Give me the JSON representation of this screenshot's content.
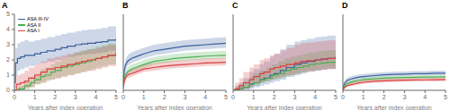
{
  "chart_data": [
    {
      "type": "step",
      "title": "A",
      "xlabel": "Years after index operation",
      "xlim": [
        0,
        5
      ],
      "ylim": [
        0,
        5
      ],
      "xticks": [
        0,
        1,
        2,
        3,
        4,
        5
      ],
      "yticks": [
        0,
        1,
        2,
        3,
        4,
        5
      ],
      "grid": false,
      "legend": "upper left",
      "series": [
        {
          "name": "ASA III-IV",
          "color": "#3a5fa0",
          "x": [
            0,
            0.05,
            0.15,
            0.3,
            0.5,
            0.7,
            1.0,
            1.3,
            1.6,
            2.0,
            2.3,
            2.6,
            3.0,
            3.3,
            3.6,
            4.0,
            4.3,
            4.6,
            5.0
          ],
          "values": [
            0.5,
            1.8,
            2.1,
            2.2,
            2.3,
            2.3,
            2.4,
            2.5,
            2.6,
            2.7,
            2.8,
            2.9,
            3.0,
            3.05,
            3.1,
            3.15,
            3.2,
            3.3,
            3.4
          ],
          "lo": [
            0.1,
            1.0,
            1.3,
            1.4,
            1.5,
            1.6,
            1.7,
            1.8,
            1.9,
            2.0,
            2.1,
            2.2,
            2.3,
            2.35,
            2.4,
            2.45,
            2.5,
            2.6,
            2.7
          ],
          "hi": [
            1.2,
            2.8,
            3.1,
            3.2,
            3.3,
            3.2,
            3.3,
            3.4,
            3.5,
            3.6,
            3.7,
            3.8,
            3.9,
            3.95,
            4.0,
            4.05,
            4.1,
            4.2,
            4.3
          ]
        },
        {
          "name": "ASA II",
          "color": "#4caf50",
          "x": [
            0,
            0.2,
            0.5,
            0.8,
            1.0,
            1.3,
            1.5,
            1.8,
            2.0,
            2.3,
            2.6,
            2.9,
            3.2,
            3.5,
            3.8,
            4.0,
            4.3,
            4.6,
            5.0
          ],
          "values": [
            0,
            0.1,
            0.3,
            0.5,
            0.7,
            0.9,
            1.0,
            1.2,
            1.3,
            1.5,
            1.6,
            1.7,
            1.8,
            1.9,
            2.0,
            2.1,
            2.2,
            2.3,
            2.4
          ],
          "lo": [
            0,
            0.0,
            0.1,
            0.2,
            0.4,
            0.5,
            0.6,
            0.7,
            0.8,
            0.9,
            1.0,
            1.1,
            1.2,
            1.3,
            1.4,
            1.5,
            1.6,
            1.7,
            1.8
          ],
          "hi": [
            0,
            0.3,
            0.6,
            0.9,
            1.1,
            1.4,
            1.5,
            1.7,
            1.9,
            2.1,
            2.3,
            2.5,
            2.6,
            2.7,
            2.8,
            2.9,
            3.0,
            3.1,
            3.2
          ]
        },
        {
          "name": "ASA I",
          "color": "#d94040",
          "x": [
            0,
            0.1,
            0.3,
            0.5,
            0.7,
            1.0,
            1.3,
            1.6,
            2.0,
            2.3,
            2.6,
            3.0,
            3.3,
            3.6,
            4.0,
            4.3,
            4.6,
            5.0
          ],
          "values": [
            0,
            0.4,
            0.5,
            0.6,
            0.8,
            1.0,
            1.2,
            1.4,
            1.5,
            1.6,
            1.7,
            1.8,
            1.9,
            2.0,
            2.1,
            2.2,
            2.3,
            2.5
          ],
          "lo": [
            0,
            0.0,
            0.05,
            0.1,
            0.2,
            0.4,
            0.5,
            0.7,
            0.8,
            0.9,
            1.0,
            1.1,
            1.2,
            1.3,
            1.4,
            1.5,
            1.6,
            1.8
          ],
          "hi": [
            0,
            1.0,
            1.1,
            1.3,
            1.5,
            1.7,
            1.9,
            2.1,
            2.2,
            2.3,
            2.4,
            2.5,
            2.6,
            2.7,
            2.8,
            2.9,
            3.0,
            3.2
          ]
        }
      ]
    },
    {
      "type": "line",
      "title": "B",
      "xlabel": "Years after index operation",
      "xlim": [
        0,
        5
      ],
      "ylim": [
        0,
        5
      ],
      "xticks": [
        0,
        1,
        2,
        3,
        4,
        5
      ],
      "yticks": [
        0,
        1,
        2,
        3,
        4,
        5
      ],
      "grid": false,
      "tick_labels": "x",
      "series": [
        {
          "name": "ASA III-IV",
          "color": "#3a5fa0",
          "x": [
            0,
            0.05,
            0.1,
            0.2,
            0.4,
            0.6,
            0.8,
            1.0,
            1.5,
            2.0,
            2.5,
            3.0,
            3.5,
            4.0,
            4.5,
            5.0
          ],
          "values": [
            0.5,
            1.3,
            1.6,
            1.9,
            2.1,
            2.2,
            2.3,
            2.4,
            2.6,
            2.7,
            2.8,
            2.9,
            2.95,
            3.0,
            3.05,
            3.1
          ],
          "lo": [
            0.3,
            1.0,
            1.3,
            1.6,
            1.8,
            1.9,
            2.0,
            2.1,
            2.3,
            2.4,
            2.5,
            2.6,
            2.65,
            2.7,
            2.75,
            2.8
          ],
          "hi": [
            0.8,
            1.7,
            2.0,
            2.3,
            2.5,
            2.6,
            2.7,
            2.8,
            3.0,
            3.1,
            3.2,
            3.3,
            3.35,
            3.4,
            3.45,
            3.5
          ]
        },
        {
          "name": "ASA II",
          "color": "#4caf50",
          "x": [
            0,
            0.05,
            0.1,
            0.2,
            0.4,
            0.6,
            0.8,
            1.0,
            1.5,
            2.0,
            2.5,
            3.0,
            3.5,
            4.0,
            4.5,
            5.0
          ],
          "values": [
            0.3,
            0.8,
            1.0,
            1.2,
            1.4,
            1.5,
            1.6,
            1.7,
            1.9,
            2.0,
            2.1,
            2.15,
            2.2,
            2.25,
            2.28,
            2.3
          ],
          "lo": [
            0.1,
            0.6,
            0.8,
            1.0,
            1.2,
            1.3,
            1.4,
            1.5,
            1.7,
            1.8,
            1.9,
            1.95,
            2.0,
            2.05,
            2.08,
            2.1
          ],
          "hi": [
            0.5,
            1.1,
            1.3,
            1.5,
            1.7,
            1.8,
            1.9,
            2.0,
            2.2,
            2.3,
            2.4,
            2.45,
            2.5,
            2.55,
            2.58,
            2.6
          ]
        },
        {
          "name": "ASA I",
          "color": "#d94040",
          "x": [
            0,
            0.05,
            0.1,
            0.2,
            0.4,
            0.6,
            0.8,
            1.0,
            1.5,
            2.0,
            2.5,
            3.0,
            3.5,
            4.0,
            4.5,
            5.0
          ],
          "values": [
            0.2,
            0.6,
            0.8,
            1.0,
            1.1,
            1.2,
            1.3,
            1.4,
            1.5,
            1.6,
            1.65,
            1.7,
            1.75,
            1.8,
            1.82,
            1.85
          ],
          "lo": [
            0.05,
            0.4,
            0.6,
            0.8,
            0.9,
            1.0,
            1.1,
            1.2,
            1.3,
            1.4,
            1.45,
            1.5,
            1.55,
            1.6,
            1.62,
            1.65
          ],
          "hi": [
            0.4,
            0.9,
            1.1,
            1.3,
            1.4,
            1.5,
            1.6,
            1.7,
            1.8,
            1.9,
            1.95,
            2.0,
            2.05,
            2.1,
            2.12,
            2.15
          ]
        }
      ]
    },
    {
      "type": "step",
      "title": "C",
      "xlabel": "Years after index operation",
      "xlim": [
        0,
        5
      ],
      "ylim": [
        0,
        5
      ],
      "xticks": [
        0,
        1,
        2,
        3,
        4,
        5
      ],
      "yticks": [
        0,
        1,
        2,
        3,
        4,
        5
      ],
      "grid": false,
      "tick_labels": "x",
      "series": [
        {
          "name": "ASA III-IV",
          "color": "#3a5fa0",
          "x": [
            0,
            0.1,
            0.3,
            0.5,
            0.8,
            1.0,
            1.3,
            1.5,
            1.8,
            2.0,
            2.3,
            2.6,
            3.0,
            3.3,
            3.6,
            4.0,
            4.3,
            4.6,
            5.0
          ],
          "values": [
            0,
            0.05,
            0.1,
            0.2,
            0.4,
            0.5,
            0.7,
            0.8,
            1.0,
            1.1,
            1.3,
            1.5,
            1.7,
            1.8,
            1.9,
            2.0,
            2.05,
            2.1,
            2.2
          ],
          "lo": [
            0,
            0.0,
            0.0,
            0.05,
            0.1,
            0.2,
            0.3,
            0.4,
            0.5,
            0.6,
            0.7,
            0.9,
            1.0,
            1.1,
            1.2,
            1.3,
            1.35,
            1.4,
            1.5
          ],
          "hi": [
            0,
            0.3,
            0.5,
            0.8,
            1.2,
            1.4,
            1.7,
            1.9,
            2.2,
            2.4,
            2.7,
            3.0,
            3.2,
            3.3,
            3.4,
            3.5,
            3.55,
            3.6,
            3.7
          ]
        },
        {
          "name": "ASA II",
          "color": "#4caf50",
          "x": [
            0,
            0.1,
            0.3,
            0.5,
            0.8,
            1.0,
            1.3,
            1.6,
            1.9,
            2.2,
            2.5,
            2.8,
            3.1,
            3.4,
            3.7,
            4.0,
            4.3,
            4.6,
            5.0
          ],
          "values": [
            0,
            0.05,
            0.1,
            0.2,
            0.4,
            0.5,
            0.7,
            0.8,
            1.0,
            1.1,
            1.3,
            1.4,
            1.5,
            1.6,
            1.7,
            1.75,
            1.8,
            1.85,
            1.9
          ],
          "lo": [
            0,
            0.0,
            0.05,
            0.1,
            0.2,
            0.3,
            0.5,
            0.6,
            0.7,
            0.8,
            0.9,
            1.0,
            1.1,
            1.2,
            1.3,
            1.35,
            1.4,
            1.45,
            1.5
          ],
          "hi": [
            0,
            0.2,
            0.4,
            0.6,
            0.9,
            1.1,
            1.3,
            1.5,
            1.7,
            1.9,
            2.1,
            2.2,
            2.3,
            2.4,
            2.5,
            2.55,
            2.6,
            2.65,
            2.7
          ]
        },
        {
          "name": "ASA I",
          "color": "#d94040",
          "x": [
            0,
            0.1,
            0.3,
            0.5,
            0.8,
            1.0,
            1.3,
            1.5,
            1.8,
            2.0,
            2.3,
            2.6,
            3.0,
            3.3,
            3.6,
            4.0,
            4.3,
            4.6,
            5.0
          ],
          "values": [
            0,
            0.1,
            0.3,
            0.5,
            0.7,
            0.9,
            1.1,
            1.2,
            1.4,
            1.5,
            1.6,
            1.7,
            1.8,
            1.9,
            1.95,
            2.0,
            2.05,
            2.1,
            2.2
          ],
          "lo": [
            0,
            0.0,
            0.05,
            0.1,
            0.2,
            0.4,
            0.5,
            0.6,
            0.7,
            0.8,
            0.9,
            1.0,
            1.1,
            1.2,
            1.25,
            1.3,
            1.35,
            1.4,
            1.5
          ],
          "hi": [
            0,
            0.5,
            0.8,
            1.2,
            1.5,
            1.7,
            2.0,
            2.1,
            2.3,
            2.4,
            2.6,
            2.8,
            3.0,
            3.1,
            3.15,
            3.2,
            3.25,
            3.3,
            3.4
          ]
        }
      ]
    },
    {
      "type": "line",
      "title": "D",
      "xlabel": "Years after index operation",
      "xlim": [
        0,
        5
      ],
      "ylim": [
        0,
        5
      ],
      "xticks": [
        0,
        1,
        2,
        3,
        4,
        5
      ],
      "yticks": [
        0,
        1,
        2,
        3,
        4,
        5
      ],
      "grid": false,
      "tick_labels": "x",
      "series": [
        {
          "name": "ASA III-IV",
          "color": "#3a5fa0",
          "x": [
            0,
            0.05,
            0.1,
            0.2,
            0.4,
            0.6,
            0.8,
            1.0,
            1.5,
            2.0,
            2.5,
            3.0,
            3.5,
            4.0,
            4.5,
            5.0
          ],
          "values": [
            0.05,
            0.35,
            0.5,
            0.65,
            0.75,
            0.82,
            0.87,
            0.9,
            0.97,
            1.02,
            1.05,
            1.07,
            1.09,
            1.1,
            1.12,
            1.13
          ],
          "lo": [
            0.01,
            0.2,
            0.35,
            0.5,
            0.6,
            0.68,
            0.73,
            0.77,
            0.84,
            0.89,
            0.92,
            0.95,
            0.97,
            0.98,
            1.0,
            1.01
          ],
          "hi": [
            0.1,
            0.52,
            0.67,
            0.82,
            0.92,
            0.99,
            1.04,
            1.07,
            1.14,
            1.19,
            1.22,
            1.24,
            1.26,
            1.27,
            1.29,
            1.3
          ]
        },
        {
          "name": "ASA II",
          "color": "#4caf50",
          "x": [
            0,
            0.05,
            0.1,
            0.2,
            0.4,
            0.6,
            0.8,
            1.0,
            1.5,
            2.0,
            2.5,
            3.0,
            3.5,
            4.0,
            4.5,
            5.0
          ],
          "values": [
            0.03,
            0.2,
            0.32,
            0.44,
            0.54,
            0.61,
            0.66,
            0.7,
            0.76,
            0.8,
            0.83,
            0.85,
            0.86,
            0.87,
            0.88,
            0.89
          ],
          "lo": [
            0.01,
            0.13,
            0.23,
            0.34,
            0.43,
            0.5,
            0.55,
            0.59,
            0.65,
            0.69,
            0.72,
            0.74,
            0.76,
            0.77,
            0.78,
            0.79
          ],
          "hi": [
            0.07,
            0.3,
            0.43,
            0.56,
            0.67,
            0.74,
            0.79,
            0.83,
            0.89,
            0.93,
            0.96,
            0.98,
            0.99,
            1.0,
            1.01,
            1.02
          ]
        },
        {
          "name": "ASA I",
          "color": "#d94040",
          "x": [
            0,
            0.05,
            0.1,
            0.2,
            0.4,
            0.6,
            0.8,
            1.0,
            1.5,
            2.0,
            2.5,
            3.0,
            3.5,
            4.0,
            4.5,
            5.0
          ],
          "values": [
            0.02,
            0.13,
            0.2,
            0.3,
            0.38,
            0.44,
            0.49,
            0.53,
            0.59,
            0.63,
            0.65,
            0.67,
            0.68,
            0.69,
            0.7,
            0.71
          ],
          "lo": [
            0.005,
            0.07,
            0.12,
            0.2,
            0.28,
            0.33,
            0.38,
            0.42,
            0.48,
            0.52,
            0.54,
            0.56,
            0.57,
            0.58,
            0.59,
            0.6
          ],
          "hi": [
            0.05,
            0.22,
            0.31,
            0.42,
            0.52,
            0.58,
            0.63,
            0.67,
            0.73,
            0.77,
            0.79,
            0.81,
            0.82,
            0.83,
            0.84,
            0.85
          ]
        }
      ]
    }
  ]
}
